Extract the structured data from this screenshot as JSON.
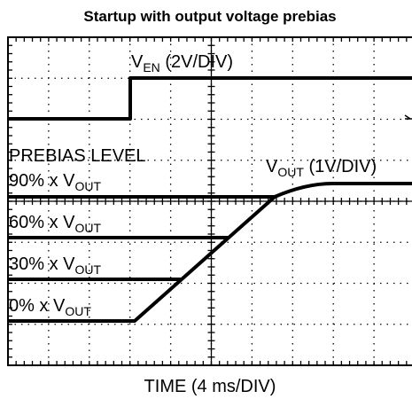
{
  "title": "Startup with output voltage prebias",
  "axis_label": "TIME (4 ms/DIV)",
  "labels": {
    "ven": {
      "main": "V",
      "sub": "EN",
      "rest": " (2V/DIV)"
    },
    "prebias": "PREBIAS LEVEL",
    "vout": {
      "main": "V",
      "sub": "OUT",
      "rest": " (1V/DIV)"
    },
    "levels": [
      {
        "main": "90% x V",
        "sub": "OUT"
      },
      {
        "main": "60% x V",
        "sub": "OUT"
      },
      {
        "main": "30% x V",
        "sub": "OUT"
      },
      {
        "main": "0% x V",
        "sub": "OUT"
      }
    ]
  }
}
